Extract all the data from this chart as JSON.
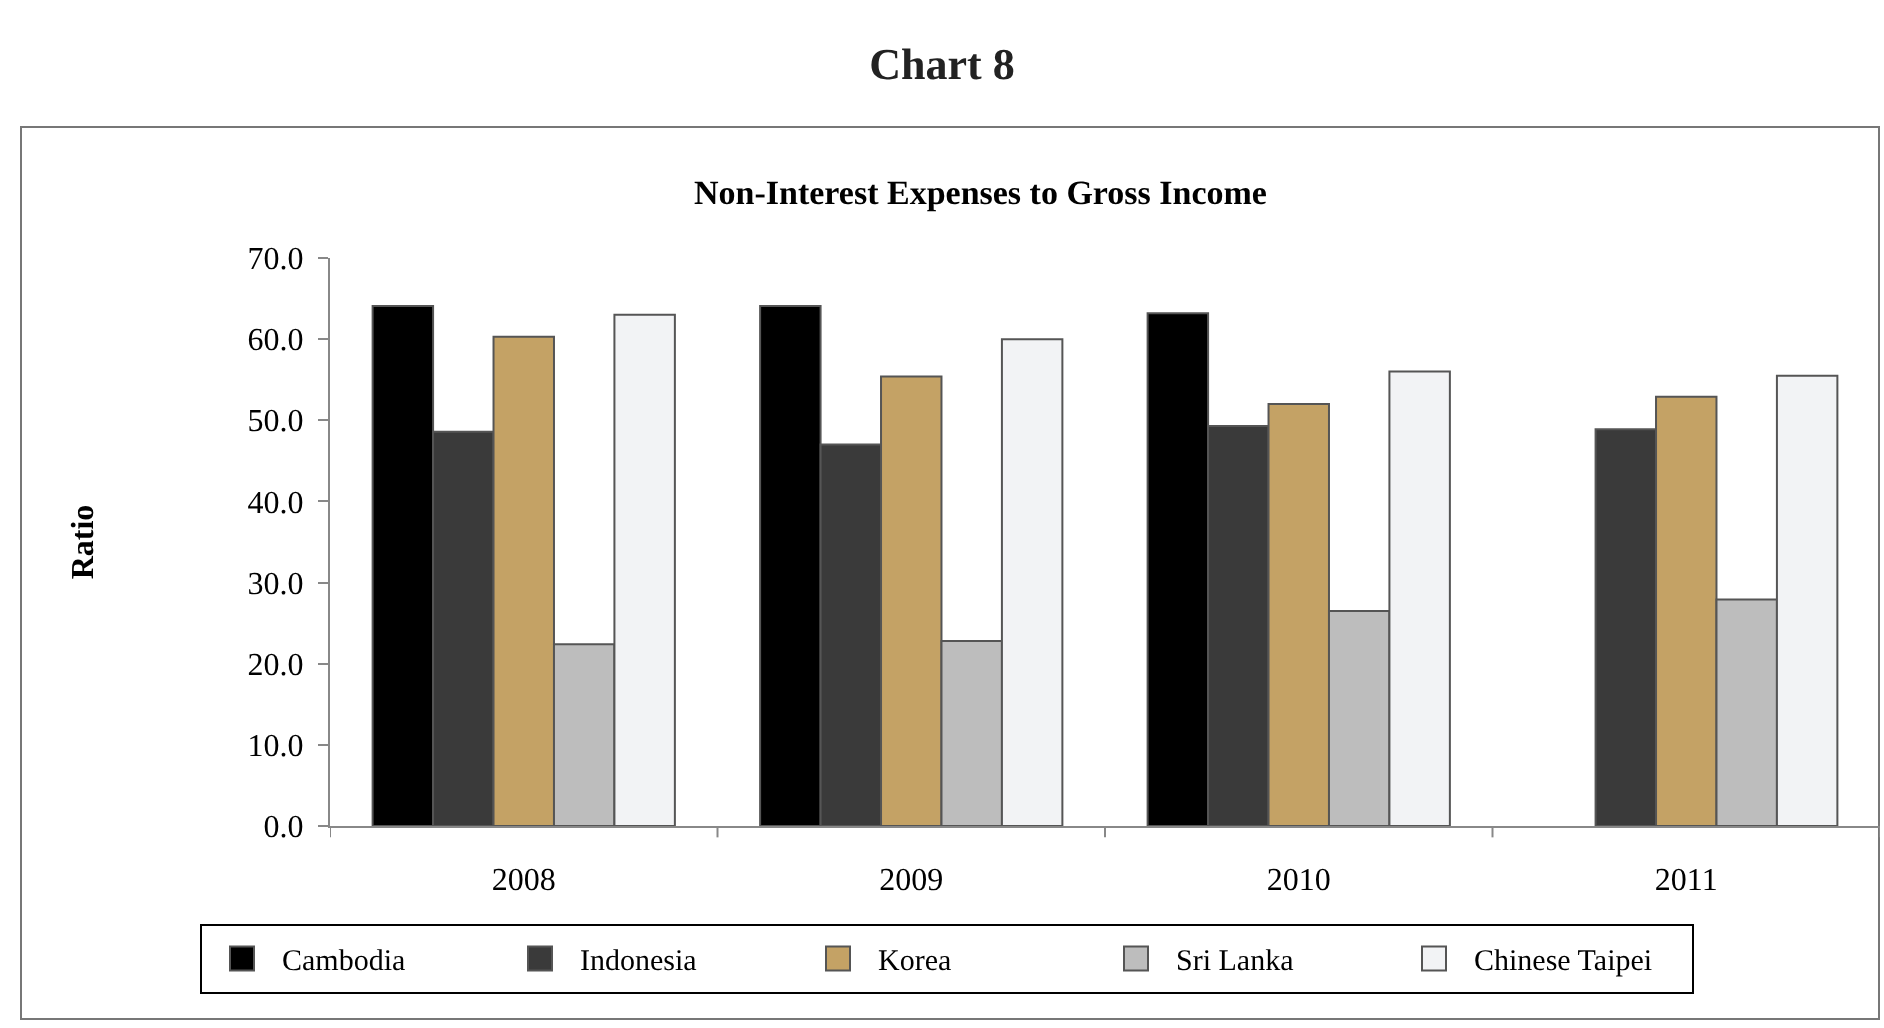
{
  "chart_data": {
    "type": "bar",
    "title": "Chart 8",
    "subtitle": "Non-Interest Expenses to Gross Income",
    "ylabel": "Ratio",
    "categories": [
      "2008",
      "2009",
      "2010",
      "2011"
    ],
    "series": [
      {
        "name": "Cambodia",
        "color": "#000000",
        "values": [
          64.1,
          64.1,
          63.2,
          null
        ]
      },
      {
        "name": "Indonesia",
        "color": "#3a3a3a",
        "values": [
          48.6,
          47.0,
          49.3,
          48.9
        ]
      },
      {
        "name": "Korea",
        "color": "#c4a265",
        "values": [
          60.3,
          55.4,
          52.0,
          52.9
        ]
      },
      {
        "name": "Sri Lanka",
        "color": "#bdbdbd",
        "values": [
          22.4,
          22.8,
          26.5,
          27.9
        ]
      },
      {
        "name": "Chinese Taipei",
        "color": "#f2f3f5",
        "values": [
          63.0,
          60.0,
          56.0,
          55.5
        ]
      }
    ],
    "ylim": [
      0,
      70
    ],
    "yticks": [
      {
        "value": 0,
        "label": "0.0"
      },
      {
        "value": 10,
        "label": "10.0"
      },
      {
        "value": 20,
        "label": "20.0"
      },
      {
        "value": 30,
        "label": "30.0"
      },
      {
        "value": 40,
        "label": "40.0"
      },
      {
        "value": 50,
        "label": "50.0"
      },
      {
        "value": 60,
        "label": "60.0"
      },
      {
        "value": 70,
        "label": "70.0"
      }
    ],
    "legend": "bottom"
  }
}
